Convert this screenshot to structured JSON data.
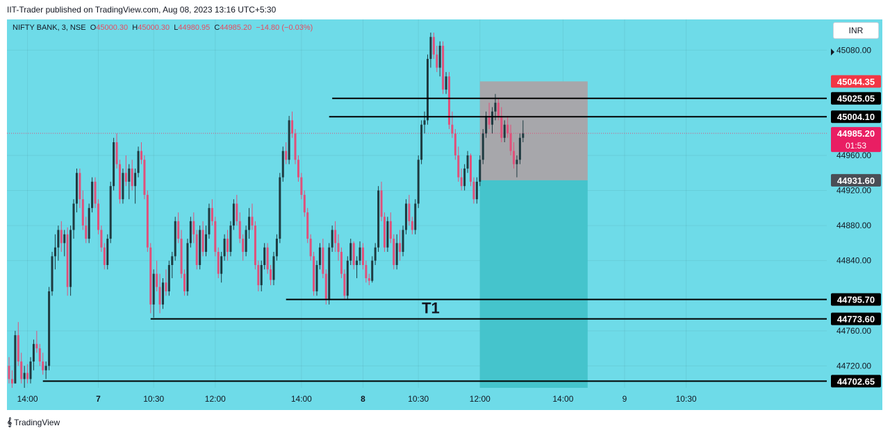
{
  "header": {
    "caption": "IIT-Trader published on TradingView.com, Aug 08, 2023 13:16 UTC+5:30"
  },
  "legend": {
    "symbol": "NIFTY BANK, 3, NSE",
    "open_label": "O",
    "open": "45000.30",
    "high_label": "H",
    "high": "45000.30",
    "low_label": "L",
    "low": "44980.95",
    "close_label": "C",
    "close": "44985.20",
    "change": "−14.80 (−0.03%)"
  },
  "currency_button": "INR",
  "footer": {
    "brand": "TradingView"
  },
  "colors": {
    "background": "#6edbe8",
    "bull": "#1e3a40",
    "bear": "#e0507a",
    "stop_zone": "#a7a7ab",
    "target_zone": "#45c4cc",
    "level_line": "#000000",
    "red_label": "#f23645",
    "pink_label": "#e91e63",
    "grey_label": "#4a4d55"
  },
  "chart_data": {
    "type": "candlestick",
    "y_axis": {
      "range": [
        44695,
        45115
      ],
      "ticks": [
        {
          "value": 45080,
          "label": "45080.00"
        },
        {
          "value": 44960,
          "label": "44960.00"
        },
        {
          "value": 44920,
          "label": "44920.00"
        },
        {
          "value": 44880,
          "label": "44880.00"
        },
        {
          "value": 44840,
          "label": "44840.00"
        },
        {
          "value": 44760,
          "label": "44760.00"
        },
        {
          "value": 44720,
          "label": "44720.00"
        }
      ]
    },
    "x_axis": {
      "ticks": [
        {
          "i": 6,
          "label": "14:00",
          "bold": false
        },
        {
          "i": 29,
          "label": "7",
          "bold": true
        },
        {
          "i": 47,
          "label": "10:30",
          "bold": false
        },
        {
          "i": 67,
          "label": "12:00",
          "bold": false
        },
        {
          "i": 95,
          "label": "14:00",
          "bold": false
        },
        {
          "i": 115,
          "label": "8",
          "bold": true
        },
        {
          "i": 133,
          "label": "10:30",
          "bold": false
        },
        {
          "i": 153,
          "label": "12:00",
          "bold": false
        },
        {
          "i": 180,
          "label": "14:00",
          "bold": false
        },
        {
          "i": 200,
          "label": "9",
          "bold": false
        },
        {
          "i": 220,
          "label": "10:30",
          "bold": false
        }
      ]
    },
    "levels": [
      {
        "price": 45025.05,
        "label": "45025.05",
        "from_i": 105
      },
      {
        "price": 45004.1,
        "label": "45004.10",
        "from_i": 104
      },
      {
        "price": 44795.7,
        "label": "44795.70",
        "from_i": 90
      },
      {
        "price": 44773.6,
        "label": "44773.60",
        "from_i": 46
      },
      {
        "price": 44702.65,
        "label": "44702.65",
        "from_i": 11
      }
    ],
    "annotations": [
      {
        "text": "T1",
        "i": 137,
        "price": 44780
      }
    ],
    "zones": [
      {
        "type": "stop",
        "from_i": 153,
        "to_i": 188,
        "top": 45044.35,
        "bottom": 44931.6
      },
      {
        "type": "target",
        "from_i": 153,
        "to_i": 188,
        "top": 44931.6,
        "bottom": 44695
      }
    ],
    "price_labels": [
      {
        "price": 45044.35,
        "label": "45044.35",
        "style": "red"
      },
      {
        "price": 44985.2,
        "label": "44985.20",
        "sub": "01:53",
        "style": "pink"
      },
      {
        "price": 44931.6,
        "label": "44931.60",
        "style": "grey"
      }
    ],
    "current_price": 44985.2,
    "candles": [
      [
        0,
        44720,
        44730,
        44700,
        44705
      ],
      [
        1,
        44705,
        44715,
        44695,
        44700
      ],
      [
        2,
        44700,
        44760,
        44700,
        44755
      ],
      [
        3,
        44755,
        44770,
        44720,
        44725
      ],
      [
        4,
        44725,
        44735,
        44700,
        44705
      ],
      [
        5,
        44705,
        44720,
        44695,
        44712
      ],
      [
        6,
        44712,
        44722,
        44700,
        44705
      ],
      [
        7,
        44705,
        44730,
        44700,
        44725
      ],
      [
        8,
        44725,
        44750,
        44715,
        44745
      ],
      [
        9,
        44745,
        44760,
        44735,
        44740
      ],
      [
        10,
        44740,
        44745,
        44720,
        44725
      ],
      [
        11,
        44725,
        44735,
        44710,
        44715
      ],
      [
        12,
        44715,
        44725,
        44705,
        44720
      ],
      [
        13,
        44720,
        44810,
        44715,
        44805
      ],
      [
        14,
        44805,
        44850,
        44800,
        44845
      ],
      [
        15,
        44845,
        44870,
        44830,
        44855
      ],
      [
        16,
        44855,
        44880,
        44840,
        44875
      ],
      [
        17,
        44875,
        44885,
        44850,
        44860
      ],
      [
        18,
        44860,
        44875,
        44845,
        44870
      ],
      [
        19,
        44870,
        44878,
        44800,
        44810
      ],
      [
        20,
        44810,
        44880,
        44800,
        44875
      ],
      [
        21,
        44875,
        44910,
        44865,
        44905
      ],
      [
        22,
        44905,
        44945,
        44895,
        44940
      ],
      [
        23,
        44940,
        44945,
        44900,
        44910
      ],
      [
        24,
        44910,
        44920,
        44875,
        44880
      ],
      [
        25,
        44880,
        44890,
        44860,
        44865
      ],
      [
        26,
        44865,
        44905,
        44860,
        44900
      ],
      [
        27,
        44900,
        44935,
        44895,
        44930
      ],
      [
        28,
        44930,
        44935,
        44900,
        44905
      ],
      [
        29,
        44905,
        44910,
        44870,
        44875
      ],
      [
        30,
        44875,
        44880,
        44850,
        44855
      ],
      [
        31,
        44855,
        44860,
        44830,
        44835
      ],
      [
        32,
        44835,
        44870,
        44830,
        44865
      ],
      [
        33,
        44865,
        44930,
        44860,
        44925
      ],
      [
        34,
        44925,
        44980,
        44920,
        44975
      ],
      [
        35,
        44975,
        44985,
        44945,
        44950
      ],
      [
        36,
        44950,
        44955,
        44905,
        44910
      ],
      [
        37,
        44910,
        44945,
        44905,
        44940
      ],
      [
        38,
        44940,
        44960,
        44925,
        44930
      ],
      [
        39,
        44930,
        44950,
        44910,
        44945
      ],
      [
        40,
        44945,
        44955,
        44920,
        44925
      ],
      [
        41,
        44925,
        44945,
        44905,
        44940
      ],
      [
        42,
        44940,
        44970,
        44935,
        44965
      ],
      [
        43,
        44965,
        44975,
        44950,
        44955
      ],
      [
        44,
        44955,
        44960,
        44910,
        44915
      ],
      [
        45,
        44915,
        44920,
        44850,
        44855
      ],
      [
        46,
        44855,
        44860,
        44780,
        44790
      ],
      [
        47,
        44790,
        44830,
        44775,
        44825
      ],
      [
        48,
        44825,
        44840,
        44805,
        44810
      ],
      [
        49,
        44810,
        44825,
        44780,
        44790
      ],
      [
        50,
        44790,
        44820,
        44785,
        44815
      ],
      [
        51,
        44815,
        44830,
        44800,
        44805
      ],
      [
        52,
        44805,
        44840,
        44800,
        44835
      ],
      [
        53,
        44835,
        44850,
        44820,
        44845
      ],
      [
        54,
        44845,
        44890,
        44840,
        44885
      ],
      [
        55,
        44885,
        44895,
        44860,
        44865
      ],
      [
        56,
        44865,
        44875,
        44820,
        44825
      ],
      [
        57,
        44825,
        44830,
        44800,
        44805
      ],
      [
        58,
        44805,
        44865,
        44800,
        44860
      ],
      [
        59,
        44860,
        44890,
        44855,
        44885
      ],
      [
        60,
        44885,
        44895,
        44860,
        44870
      ],
      [
        61,
        44870,
        44875,
        44830,
        44835
      ],
      [
        62,
        44835,
        44880,
        44830,
        44875
      ],
      [
        63,
        44875,
        44885,
        44845,
        44850
      ],
      [
        64,
        44850,
        44880,
        44845,
        44870
      ],
      [
        65,
        44870,
        44905,
        44865,
        44900
      ],
      [
        66,
        44900,
        44910,
        44880,
        44885
      ],
      [
        67,
        44885,
        44890,
        44845,
        44850
      ],
      [
        68,
        44850,
        44855,
        44820,
        44825
      ],
      [
        69,
        44825,
        44850,
        44815,
        44845
      ],
      [
        70,
        44845,
        44870,
        44840,
        44865
      ],
      [
        71,
        44865,
        44875,
        44840,
        44850
      ],
      [
        72,
        44850,
        44885,
        44845,
        44880
      ],
      [
        73,
        44880,
        44910,
        44875,
        44905
      ],
      [
        74,
        44905,
        44915,
        44880,
        44885
      ],
      [
        75,
        44885,
        44895,
        44860,
        44865
      ],
      [
        76,
        44865,
        44870,
        44840,
        44850
      ],
      [
        77,
        44850,
        44880,
        44845,
        44875
      ],
      [
        78,
        44875,
        44900,
        44865,
        44890
      ],
      [
        79,
        44890,
        44905,
        44875,
        44880
      ],
      [
        80,
        44880,
        44885,
        44830,
        44835
      ],
      [
        81,
        44835,
        44840,
        44805,
        44812
      ],
      [
        82,
        44812,
        44840,
        44805,
        44835
      ],
      [
        83,
        44835,
        44860,
        44830,
        44855
      ],
      [
        84,
        44855,
        44860,
        44825,
        44830
      ],
      [
        85,
        44830,
        44835,
        44812,
        44818
      ],
      [
        86,
        44818,
        44850,
        44812,
        44845
      ],
      [
        87,
        44845,
        44870,
        44840,
        44865
      ],
      [
        88,
        44865,
        44940,
        44860,
        44935
      ],
      [
        89,
        44935,
        44970,
        44930,
        44965
      ],
      [
        90,
        44965,
        44975,
        44950,
        44955
      ],
      [
        91,
        44955,
        45005,
        44950,
        45000
      ],
      [
        92,
        45000,
        45010,
        44980,
        44985
      ],
      [
        93,
        44985,
        44990,
        44950,
        44955
      ],
      [
        94,
        44955,
        44960,
        44930,
        44935
      ],
      [
        95,
        44935,
        44940,
        44910,
        44915
      ],
      [
        96,
        44915,
        44920,
        44890,
        44895
      ],
      [
        97,
        44895,
        44900,
        44860,
        44865
      ],
      [
        98,
        44865,
        44870,
        44840,
        44845
      ],
      [
        99,
        44845,
        44850,
        44800,
        44805
      ],
      [
        100,
        44805,
        44840,
        44800,
        44835
      ],
      [
        101,
        44835,
        44860,
        44830,
        44855
      ],
      [
        102,
        44855,
        44865,
        44820,
        44825
      ],
      [
        103,
        44825,
        44830,
        44790,
        44795
      ],
      [
        104,
        44795,
        44860,
        44790,
        44855
      ],
      [
        105,
        44855,
        44880,
        44850,
        44875
      ],
      [
        106,
        44875,
        44885,
        44850,
        44860
      ],
      [
        107,
        44860,
        44870,
        44840,
        44850
      ],
      [
        108,
        44850,
        44855,
        44820,
        44825
      ],
      [
        109,
        44825,
        44830,
        44795,
        44800
      ],
      [
        110,
        44800,
        44845,
        44795,
        44840
      ],
      [
        111,
        44840,
        44865,
        44835,
        44860
      ],
      [
        112,
        44860,
        44862,
        44830,
        44835
      ],
      [
        113,
        44835,
        44845,
        44820,
        44840
      ],
      [
        114,
        44840,
        44862,
        44835,
        44855
      ],
      [
        115,
        44855,
        44860,
        44830,
        44835
      ],
      [
        116,
        44835,
        44840,
        44815,
        44820
      ],
      [
        117,
        44820,
        44825,
        44812,
        44817
      ],
      [
        118,
        44817,
        44845,
        44815,
        44840
      ],
      [
        119,
        44840,
        44860,
        44835,
        44855
      ],
      [
        120,
        44855,
        44925,
        44850,
        44920
      ],
      [
        121,
        44920,
        44930,
        44885,
        44890
      ],
      [
        122,
        44890,
        44895,
        44850,
        44855
      ],
      [
        123,
        44855,
        44890,
        44850,
        44885
      ],
      [
        124,
        44885,
        44895,
        44860,
        44865
      ],
      [
        125,
        44865,
        44870,
        44830,
        44835
      ],
      [
        126,
        44835,
        44870,
        44830,
        44860
      ],
      [
        127,
        44860,
        44875,
        44840,
        44850
      ],
      [
        128,
        44850,
        44880,
        44845,
        44875
      ],
      [
        129,
        44875,
        44910,
        44870,
        44905
      ],
      [
        130,
        44905,
        44915,
        44880,
        44885
      ],
      [
        131,
        44885,
        44890,
        44870,
        44875
      ],
      [
        132,
        44875,
        44910,
        44870,
        44905
      ],
      [
        133,
        44905,
        44960,
        44900,
        44955
      ],
      [
        134,
        44955,
        45000,
        44950,
        44995
      ],
      [
        135,
        44995,
        45010,
        44985,
        45000
      ],
      [
        136,
        45000,
        45075,
        44995,
        45070
      ],
      [
        137,
        45070,
        45100,
        45060,
        45095
      ],
      [
        138,
        45095,
        45100,
        45070,
        45075
      ],
      [
        139,
        45075,
        45085,
        45055,
        45060
      ],
      [
        140,
        45060,
        45090,
        45050,
        45085
      ],
      [
        141,
        45085,
        45090,
        45030,
        45035
      ],
      [
        142,
        45035,
        45055,
        45030,
        45050
      ],
      [
        143,
        45050,
        45055,
        44990,
        44995
      ],
      [
        144,
        44995,
        45010,
        44980,
        44985
      ],
      [
        145,
        44985,
        44990,
        44955,
        44960
      ],
      [
        146,
        44960,
        44970,
        44930,
        44935
      ],
      [
        147,
        44935,
        44945,
        44920,
        44925
      ],
      [
        148,
        44925,
        44950,
        44920,
        44945
      ],
      [
        149,
        44945,
        44965,
        44940,
        44960
      ],
      [
        150,
        44960,
        44962,
        44925,
        44930
      ],
      [
        151,
        44930,
        44935,
        44905,
        44910
      ],
      [
        152,
        44910,
        44935,
        44905,
        44930
      ],
      [
        153,
        44930,
        44960,
        44925,
        44955
      ],
      [
        154,
        44955,
        44990,
        44950,
        44985
      ],
      [
        155,
        44985,
        45010,
        44980,
        45005
      ],
      [
        156,
        45005,
        45020,
        44990,
        44995
      ],
      [
        157,
        44995,
        45015,
        44985,
        45010
      ],
      [
        158,
        45010,
        45030,
        45000,
        45020
      ],
      [
        159,
        45020,
        45025,
        45000,
        45005
      ],
      [
        160,
        45005,
        45015,
        44975,
        44980
      ],
      [
        161,
        44980,
        45000,
        44975,
        44995
      ],
      [
        162,
        44995,
        45005,
        44980,
        44985
      ],
      [
        163,
        44985,
        44995,
        44960,
        44965
      ],
      [
        164,
        44965,
        44975,
        44945,
        44950
      ],
      [
        165,
        44950,
        44960,
        44935,
        44955
      ],
      [
        166,
        44955,
        44985,
        44950,
        44980
      ],
      [
        167,
        44980,
        45000,
        44975,
        44985
      ]
    ]
  }
}
